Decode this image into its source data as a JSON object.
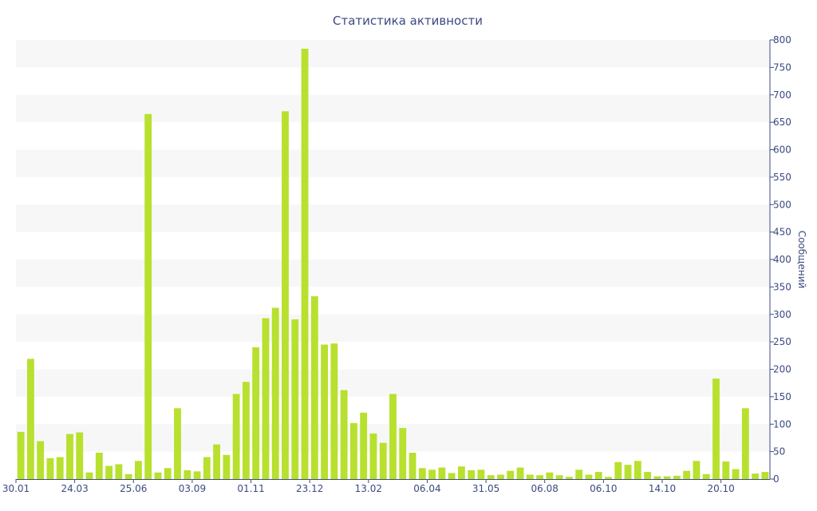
{
  "chart_data": {
    "type": "bar",
    "title": "Статистика активности",
    "xlabel": "",
    "ylabel": "Сообщений",
    "ylim": [
      0,
      800
    ],
    "y_ticks": [
      0,
      50,
      100,
      150,
      200,
      250,
      300,
      350,
      400,
      450,
      500,
      550,
      600,
      650,
      700,
      750,
      800
    ],
    "y_axis_side": "right",
    "x_tick_labels": [
      {
        "label": "30.01",
        "index": 0
      },
      {
        "label": "24.03",
        "index": 6
      },
      {
        "label": "25.06",
        "index": 12
      },
      {
        "label": "03.09",
        "index": 18
      },
      {
        "label": "01.11",
        "index": 24
      },
      {
        "label": "23.12",
        "index": 30
      },
      {
        "label": "13.02",
        "index": 36
      },
      {
        "label": "06.04",
        "index": 42
      },
      {
        "label": "31.05",
        "index": 48
      },
      {
        "label": "06.08",
        "index": 54
      },
      {
        "label": "06.10",
        "index": 60
      },
      {
        "label": "14.10",
        "index": 66
      },
      {
        "label": "20.10",
        "index": 72
      }
    ],
    "values": [
      86,
      219,
      69,
      38,
      40,
      82,
      85,
      12,
      48,
      24,
      27,
      9,
      33,
      665,
      12,
      20,
      129,
      16,
      14,
      40,
      63,
      44,
      155,
      177,
      240,
      293,
      312,
      670,
      291,
      784,
      333,
      245,
      247,
      162,
      102,
      121,
      83,
      66,
      155,
      93,
      48,
      20,
      17,
      21,
      11,
      23,
      16,
      17,
      7,
      8,
      15,
      21,
      8,
      7,
      12,
      7,
      4,
      17,
      8,
      13,
      4,
      31,
      26,
      33,
      13,
      5,
      5,
      6,
      15,
      33,
      9,
      183,
      32,
      18,
      129,
      10,
      13
    ],
    "bar_color": "#b8e02e",
    "band_color": "#f7f7f7",
    "axis_color": "#3b4a80",
    "grid": "alternating horizontal bands",
    "legend": "none"
  }
}
